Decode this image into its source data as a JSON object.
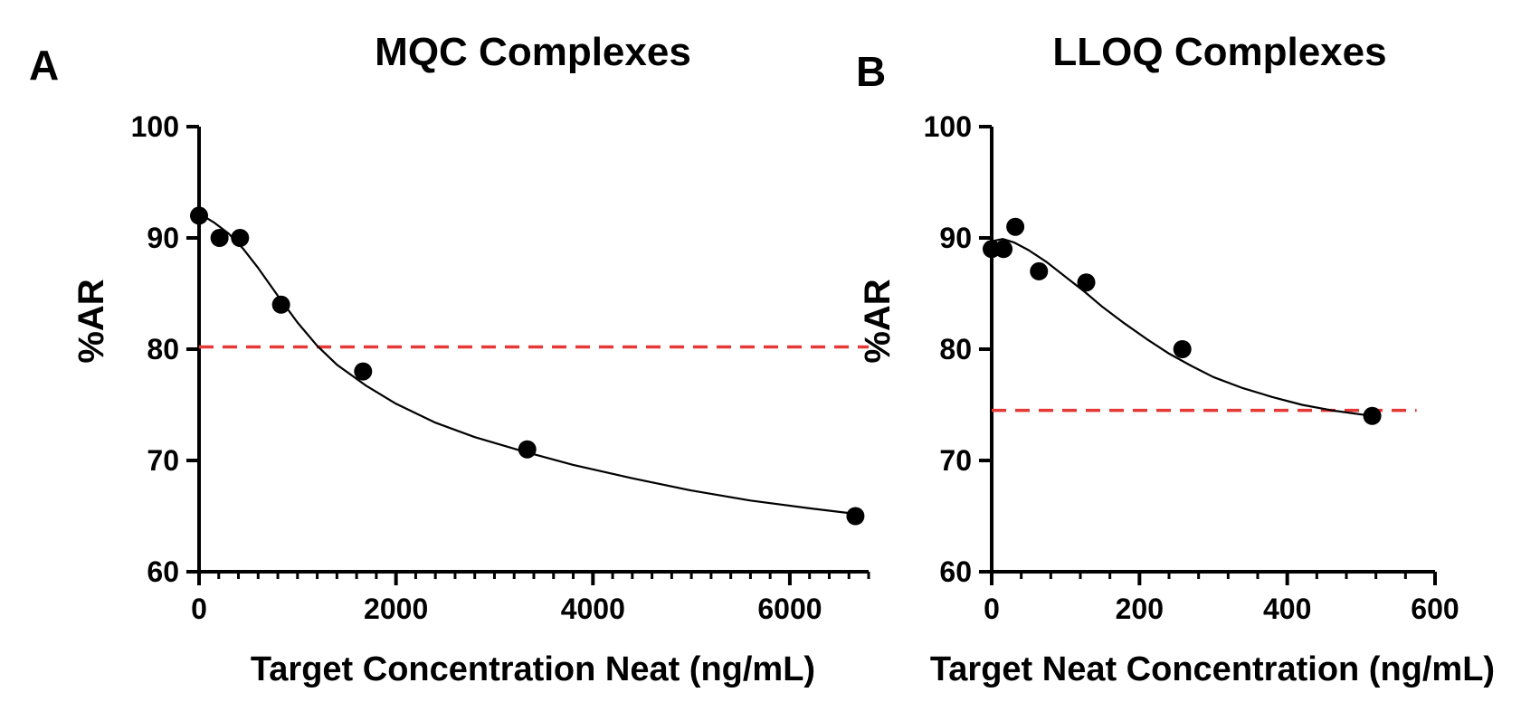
{
  "colors": {
    "ink": "#000000",
    "threshold": "#e53935"
  },
  "chart_data": [
    {
      "type": "scatter",
      "panel_label": "A",
      "title": "MQC Complexes",
      "xlabel": "Target Concentration Neat (ng/mL)",
      "ylabel": "%AR",
      "xlim": [
        0,
        6800
      ],
      "ylim": [
        60,
        100
      ],
      "x_ticks": [
        0,
        2000,
        4000,
        6000
      ],
      "x_minor_step": 200,
      "y_ticks": [
        60,
        70,
        80,
        90,
        100
      ],
      "grid": false,
      "points": [
        {
          "x": 0,
          "y": 92
        },
        {
          "x": 208,
          "y": 90
        },
        {
          "x": 416,
          "y": 90
        },
        {
          "x": 833,
          "y": 84
        },
        {
          "x": 1666,
          "y": 78
        },
        {
          "x": 3333,
          "y": 71
        },
        {
          "x": 6666,
          "y": 65
        }
      ],
      "fit_curve": [
        {
          "x": 0,
          "y": 92.2
        },
        {
          "x": 150,
          "y": 91.4
        },
        {
          "x": 300,
          "y": 90.4
        },
        {
          "x": 450,
          "y": 89.0
        },
        {
          "x": 600,
          "y": 87.3
        },
        {
          "x": 800,
          "y": 84.8
        },
        {
          "x": 1000,
          "y": 82.4
        },
        {
          "x": 1200,
          "y": 80.3
        },
        {
          "x": 1400,
          "y": 78.6
        },
        {
          "x": 1700,
          "y": 76.7
        },
        {
          "x": 2000,
          "y": 75.1
        },
        {
          "x": 2400,
          "y": 73.4
        },
        {
          "x": 2800,
          "y": 72.1
        },
        {
          "x": 3300,
          "y": 70.8
        },
        {
          "x": 3800,
          "y": 69.6
        },
        {
          "x": 4400,
          "y": 68.4
        },
        {
          "x": 5000,
          "y": 67.3
        },
        {
          "x": 5600,
          "y": 66.4
        },
        {
          "x": 6200,
          "y": 65.7
        },
        {
          "x": 6666,
          "y": 65.2
        }
      ],
      "threshold": {
        "y": 80.2,
        "x_start": 0,
        "x_end": 6800
      }
    },
    {
      "type": "scatter",
      "panel_label": "B",
      "title": "LLOQ Complexes",
      "xlabel": "Target Neat Concentration (ng/mL)",
      "ylabel": "%AR",
      "xlim": [
        0,
        600
      ],
      "ylim": [
        60,
        100
      ],
      "x_ticks": [
        0,
        200,
        400,
        600
      ],
      "x_minor_step": 40,
      "y_ticks": [
        60,
        70,
        80,
        90,
        100
      ],
      "grid": false,
      "points": [
        {
          "x": 0,
          "y": 89
        },
        {
          "x": 16,
          "y": 89
        },
        {
          "x": 32,
          "y": 91
        },
        {
          "x": 64,
          "y": 87
        },
        {
          "x": 128,
          "y": 86
        },
        {
          "x": 258,
          "y": 80
        },
        {
          "x": 515,
          "y": 74
        }
      ],
      "fit_curve": [
        {
          "x": 0,
          "y": 89.7
        },
        {
          "x": 15,
          "y": 89.9
        },
        {
          "x": 30,
          "y": 89.6
        },
        {
          "x": 50,
          "y": 88.9
        },
        {
          "x": 75,
          "y": 87.8
        },
        {
          "x": 100,
          "y": 86.5
        },
        {
          "x": 125,
          "y": 85.2
        },
        {
          "x": 150,
          "y": 83.8
        },
        {
          "x": 180,
          "y": 82.3
        },
        {
          "x": 210,
          "y": 80.9
        },
        {
          "x": 240,
          "y": 79.6
        },
        {
          "x": 270,
          "y": 78.5
        },
        {
          "x": 300,
          "y": 77.5
        },
        {
          "x": 340,
          "y": 76.5
        },
        {
          "x": 380,
          "y": 75.7
        },
        {
          "x": 420,
          "y": 75.0
        },
        {
          "x": 460,
          "y": 74.5
        },
        {
          "x": 515,
          "y": 74.0
        }
      ],
      "threshold": {
        "y": 74.5,
        "x_start": 0,
        "x_end": 575
      }
    }
  ]
}
